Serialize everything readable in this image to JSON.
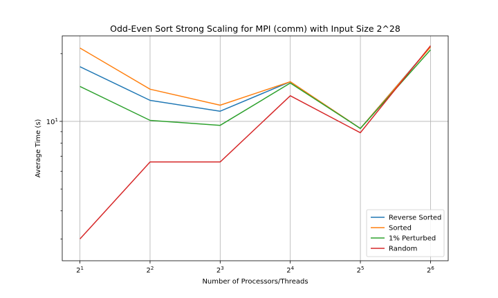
{
  "chart_data": {
    "type": "line",
    "title": "Odd-Even Sort Strong Scaling for MPI (comm) with Input Size 2^28",
    "xlabel": "Number of Processors/Threads",
    "ylabel": "Average Time (s)",
    "x_scale": "log2",
    "y_scale": "log",
    "x": [
      2,
      4,
      8,
      16,
      32,
      64
    ],
    "x_tick_labels": [
      {
        "base": "2",
        "exp": "1"
      },
      {
        "base": "2",
        "exp": "2"
      },
      {
        "base": "2",
        "exp": "3"
      },
      {
        "base": "2",
        "exp": "4"
      },
      {
        "base": "2",
        "exp": "5"
      },
      {
        "base": "2",
        "exp": "6"
      }
    ],
    "y_tick_labels": [
      {
        "value": 10,
        "base": "10",
        "exp": "1"
      }
    ],
    "ylim": [
      2.4,
      24
    ],
    "grid": true,
    "legend_position": "lower-right",
    "series": [
      {
        "name": "Reverse Sorted",
        "color": "#1f77b4",
        "values": [
          17.5,
          12.4,
          11.1,
          15.0,
          9.3,
          21.5
        ]
      },
      {
        "name": "Sorted",
        "color": "#ff7f0e",
        "values": [
          21.2,
          13.9,
          11.8,
          15.0,
          9.3,
          21.4
        ]
      },
      {
        "name": "1% Perturbed",
        "color": "#2ca02c",
        "values": [
          14.3,
          10.1,
          9.6,
          14.8,
          9.3,
          20.8
        ]
      },
      {
        "name": "Random",
        "color": "#d62728",
        "values": [
          3.0,
          6.6,
          6.6,
          13.0,
          8.9,
          21.7
        ]
      }
    ]
  }
}
